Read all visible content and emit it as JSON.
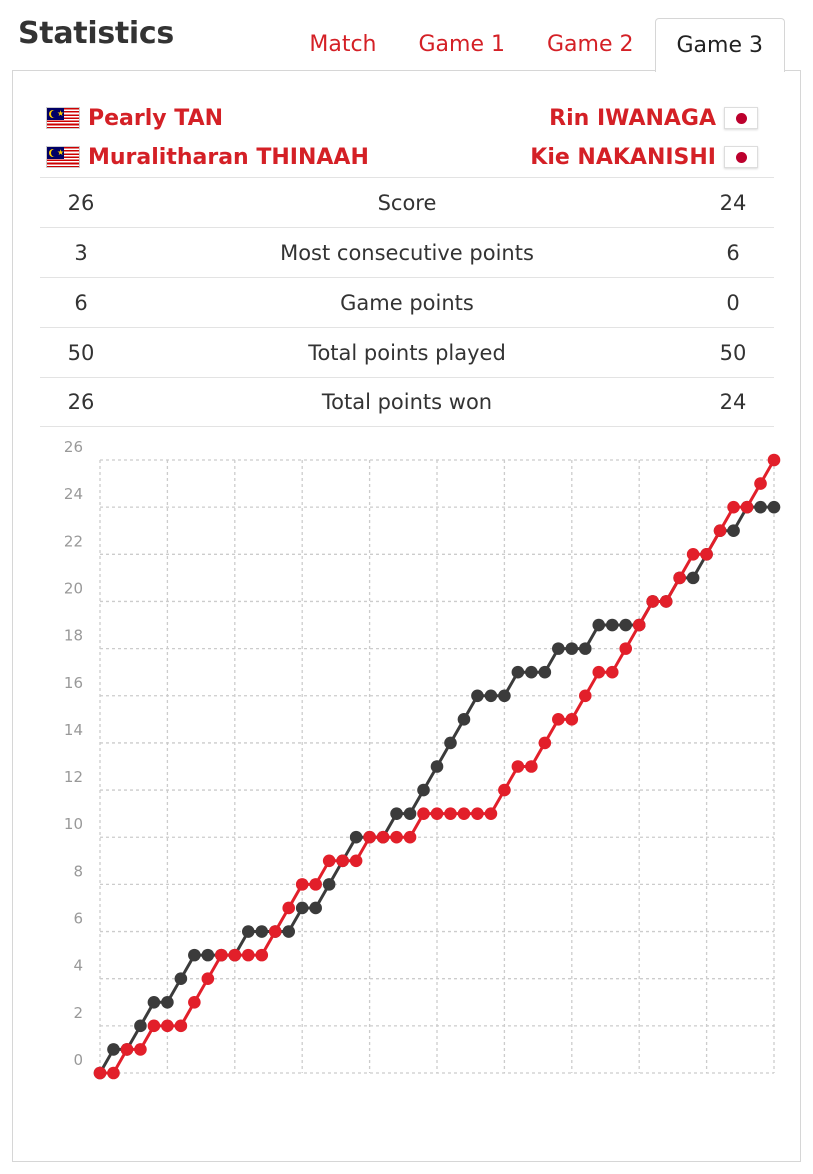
{
  "heading": "Statistics",
  "tabs": [
    {
      "label": "Match",
      "active": false
    },
    {
      "label": "Game 1",
      "active": false
    },
    {
      "label": "Game 2",
      "active": false
    },
    {
      "label": "Game 3",
      "active": true
    }
  ],
  "players": {
    "left": [
      {
        "name": "Pearly TAN",
        "flag": "malaysia-flag-icon"
      },
      {
        "name": "Muralitharan THINAAH",
        "flag": "malaysia-flag-icon"
      }
    ],
    "right": [
      {
        "name": "Rin IWANAGA",
        "flag": "japan-flag-icon"
      },
      {
        "name": "Kie NAKANISHI",
        "flag": "japan-flag-icon"
      }
    ]
  },
  "stats": [
    {
      "label": "Score",
      "left": "26",
      "right": "24"
    },
    {
      "label": "Most consecutive points",
      "left": "3",
      "right": "6"
    },
    {
      "label": "Game points",
      "left": "6",
      "right": "0"
    },
    {
      "label": "Total points played",
      "left": "50",
      "right": "50"
    },
    {
      "label": "Total points won",
      "left": "26",
      "right": "24"
    }
  ],
  "colors": {
    "accent": "#d42026",
    "left_series": "#e21f2a",
    "right_series": "#3b3b3b",
    "grid": "#cccccc"
  },
  "chart_data": {
    "type": "line",
    "ylim": [
      0,
      26
    ],
    "y_ticks": [
      "0",
      "2",
      "4",
      "6",
      "8",
      "10",
      "12",
      "14",
      "16",
      "18",
      "20",
      "22",
      "24",
      "26"
    ],
    "grid": true,
    "x_points": 51,
    "series": [
      {
        "values": [
          0,
          0,
          1,
          1,
          2,
          2,
          2,
          3,
          4,
          5,
          5,
          5,
          5,
          6,
          7,
          8,
          8,
          9,
          9,
          9,
          10,
          10,
          10,
          10,
          11,
          11,
          11,
          11,
          11,
          11,
          12,
          13,
          13,
          14,
          15,
          15,
          16,
          17,
          17,
          18,
          19,
          20,
          20,
          21,
          22,
          22,
          23,
          24,
          24,
          25,
          26
        ]
      },
      {
        "values": [
          0,
          1,
          1,
          2,
          3,
          3,
          4,
          5,
          5,
          5,
          5,
          6,
          6,
          6,
          6,
          7,
          7,
          8,
          9,
          10,
          10,
          10,
          11,
          11,
          12,
          13,
          14,
          15,
          16,
          16,
          16,
          17,
          17,
          17,
          18,
          18,
          18,
          19,
          19,
          19,
          19,
          20,
          20,
          21,
          21,
          22,
          23,
          23,
          24,
          24,
          24
        ]
      }
    ]
  }
}
